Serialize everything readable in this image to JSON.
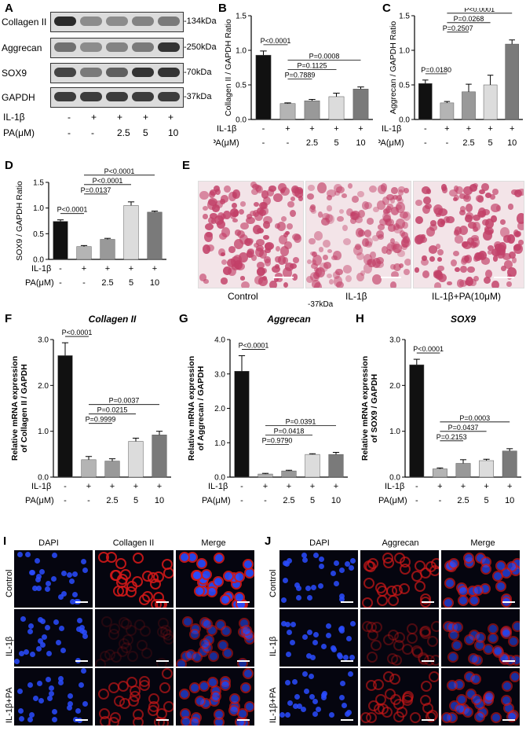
{
  "panel_labels": {
    "A": "A",
    "B": "B",
    "C": "C",
    "D": "D",
    "E": "E",
    "F": "F",
    "G": "G",
    "H": "H",
    "I": "I",
    "J": "J"
  },
  "blot": {
    "rows": [
      {
        "name": "Collagen II",
        "kda": "-134kDa",
        "intensity": [
          1.0,
          0.45,
          0.45,
          0.5,
          0.55
        ]
      },
      {
        "name": "Aggrecan",
        "kda": "-250kDa",
        "intensity": [
          0.6,
          0.45,
          0.5,
          0.55,
          0.95
        ]
      },
      {
        "name": "SOX9",
        "kda": "-70kDa",
        "intensity": [
          0.85,
          0.55,
          0.7,
          0.95,
          0.95
        ]
      },
      {
        "name": "GAPDH",
        "kda": "-37kDa",
        "intensity": [
          0.9,
          0.9,
          0.9,
          0.9,
          0.9
        ]
      }
    ]
  },
  "conditions": {
    "il1b_label": "IL-1β",
    "pa_label": "PA(μM)",
    "il1b": [
      "-",
      "+",
      "+",
      "+",
      "+"
    ],
    "pa": [
      "-",
      "-",
      "2.5",
      "5",
      "10"
    ]
  },
  "histology": {
    "labels": [
      "Control",
      "IL-1β",
      "IL-1β+PA(10μM)"
    ],
    "stray_label": "-37kDa"
  },
  "chart_data": [
    {
      "panel": "B",
      "type": "bar",
      "ylabel": "Collagen II / GAPDH Ratio",
      "ylim": [
        0,
        1.5
      ],
      "yticks": [
        "0.0",
        "0.5",
        "1.0",
        "1.5"
      ],
      "values": [
        0.93,
        0.23,
        0.27,
        0.33,
        0.44
      ],
      "errors": [
        0.06,
        0.01,
        0.02,
        0.05,
        0.03
      ],
      "colors": [
        "#111111",
        "#b4b4b4",
        "#999999",
        "#dcdcdc",
        "#7a7a7a"
      ],
      "annotations": [
        {
          "text": "P<0.0001",
          "from": 0,
          "to": 1
        },
        {
          "text": "P=0.7889",
          "from": 1,
          "to": 2
        },
        {
          "text": "P=0.1125",
          "from": 1,
          "to": 3
        },
        {
          "text": "P=0.0008",
          "from": 1,
          "to": 4
        }
      ]
    },
    {
      "panel": "C",
      "type": "bar",
      "ylabel": "Aggrecan / GAPDH Ratio",
      "ylim": [
        0,
        1.5
      ],
      "yticks": [
        "0.0",
        "0.5",
        "1.0",
        "1.5"
      ],
      "values": [
        0.52,
        0.24,
        0.4,
        0.5,
        1.09
      ],
      "errors": [
        0.05,
        0.02,
        0.11,
        0.14,
        0.06
      ],
      "colors": [
        "#111111",
        "#b4b4b4",
        "#999999",
        "#dcdcdc",
        "#7a7a7a"
      ],
      "annotations": [
        {
          "text": "P=0.0180",
          "from": 0,
          "to": 1
        },
        {
          "text": "P=0.2507",
          "from": 1,
          "to": 2
        },
        {
          "text": "P=0.0268",
          "from": 1,
          "to": 3
        },
        {
          "text": "P<0.0001",
          "from": 1,
          "to": 4
        }
      ]
    },
    {
      "panel": "D",
      "type": "bar",
      "ylabel": "SOX9 / GAPDH Ratio",
      "ylim": [
        0,
        1.5
      ],
      "yticks": [
        "0.0",
        "0.5",
        "1.0",
        "1.5"
      ],
      "values": [
        0.74,
        0.25,
        0.39,
        1.05,
        0.92
      ],
      "errors": [
        0.03,
        0.02,
        0.02,
        0.07,
        0.02
      ],
      "colors": [
        "#111111",
        "#b4b4b4",
        "#999999",
        "#dcdcdc",
        "#7a7a7a"
      ],
      "annotations": [
        {
          "text": "P<0.0001",
          "from": 0,
          "to": 1
        },
        {
          "text": "P=0.0137",
          "from": 1,
          "to": 2
        },
        {
          "text": "P<0.0001",
          "from": 1,
          "to": 3
        },
        {
          "text": "P<0.0001",
          "from": 1,
          "to": 4
        }
      ]
    },
    {
      "panel": "F",
      "type": "bar",
      "title": "Collagen II",
      "ylabel": "Relative mRNA expression of Collagen II / GAPDH",
      "ylim": [
        0,
        3.0
      ],
      "yticks": [
        "0.0",
        "1.0",
        "2.0",
        "3.0"
      ],
      "values": [
        2.65,
        0.38,
        0.35,
        0.78,
        0.92
      ],
      "errors": [
        0.28,
        0.07,
        0.05,
        0.07,
        0.08
      ],
      "colors": [
        "#111111",
        "#b4b4b4",
        "#999999",
        "#dcdcdc",
        "#7a7a7a"
      ],
      "annotations": [
        {
          "text": "P<0.0001",
          "from": 0,
          "to": 1
        },
        {
          "text": "P=0.9999",
          "from": 1,
          "to": 2
        },
        {
          "text": "P=0.0215",
          "from": 1,
          "to": 3
        },
        {
          "text": "P=0.0037",
          "from": 1,
          "to": 4
        }
      ]
    },
    {
      "panel": "G",
      "type": "bar",
      "title": "Aggrecan",
      "ylabel": "Relative mRNA expression of Aggrecan / GAPDH",
      "ylim": [
        0,
        4.0
      ],
      "yticks": [
        "0.0",
        "1.0",
        "2.0",
        "3.0",
        "4.0"
      ],
      "values": [
        3.08,
        0.09,
        0.18,
        0.66,
        0.66
      ],
      "errors": [
        0.45,
        0.02,
        0.02,
        0.02,
        0.06
      ],
      "colors": [
        "#111111",
        "#b4b4b4",
        "#999999",
        "#dcdcdc",
        "#7a7a7a"
      ],
      "annotations": [
        {
          "text": "P<0.0001",
          "from": 0,
          "to": 1
        },
        {
          "text": "P=0.9790",
          "from": 1,
          "to": 2
        },
        {
          "text": "P=0.0418",
          "from": 1,
          "to": 3
        },
        {
          "text": "P=0.0391",
          "from": 1,
          "to": 4
        }
      ]
    },
    {
      "panel": "H",
      "type": "bar",
      "title": "SOX9",
      "ylabel": "Relative mRNA expression of SOX9 / GAPDH",
      "ylim": [
        0,
        3.0
      ],
      "yticks": [
        "0.0",
        "1.0",
        "2.0",
        "3.0"
      ],
      "values": [
        2.45,
        0.18,
        0.3,
        0.36,
        0.57
      ],
      "errors": [
        0.12,
        0.02,
        0.08,
        0.03,
        0.05
      ],
      "colors": [
        "#111111",
        "#b4b4b4",
        "#999999",
        "#dcdcdc",
        "#7a7a7a"
      ],
      "annotations": [
        {
          "text": "P<0.0001",
          "from": 0,
          "to": 1
        },
        {
          "text": "P=0.2153",
          "from": 1,
          "to": 2
        },
        {
          "text": "P=0.0437",
          "from": 1,
          "to": 3
        },
        {
          "text": "P=0.0003",
          "from": 1,
          "to": 4
        }
      ]
    }
  ],
  "immuno": {
    "I": {
      "headers": [
        "DAPI",
        "Collagen II",
        "Merge"
      ],
      "rows": [
        "Control",
        "IL-1β",
        "IL-1β+PA"
      ],
      "red_level": [
        0.9,
        0.15,
        0.65
      ]
    },
    "J": {
      "headers": [
        "DAPI",
        "Aggrecan",
        "Merge"
      ],
      "rows": [
        "Control",
        "IL-1β",
        "IL-1β+PA"
      ],
      "red_level": [
        0.7,
        0.35,
        0.6
      ]
    }
  },
  "colors": {
    "nucleus": "#2a4cff",
    "stain_red": "#d01818",
    "histo_bg": "#f3e4e8",
    "histo_cell": "#c24068"
  }
}
